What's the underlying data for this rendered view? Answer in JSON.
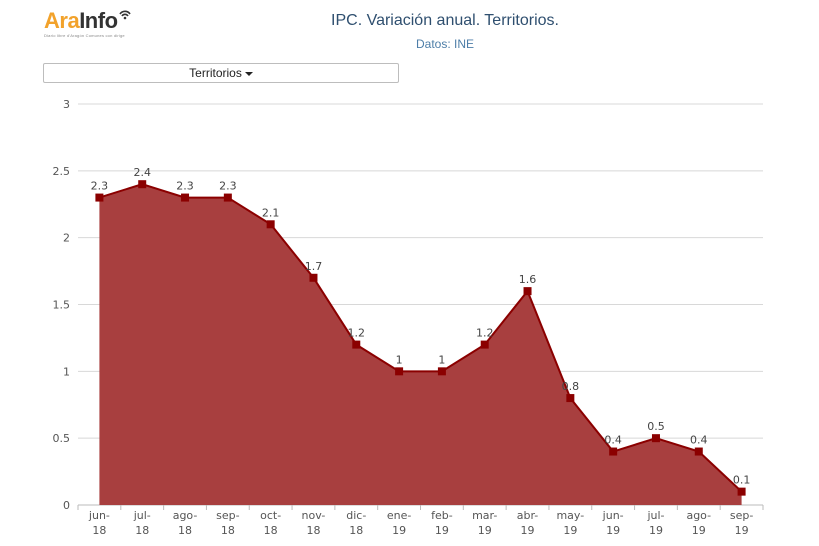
{
  "brand": {
    "name_a": "Ara",
    "name_b": "Info",
    "tagline": "Diario libre d'Aragón",
    "tagline2": "Comunes con dirige"
  },
  "header": {
    "title": "IPC. Variación anual. Territorios.",
    "subtitle": "Datos: INE"
  },
  "filter": {
    "label": "Territorios"
  },
  "colors": {
    "area": "#a83f3f",
    "line": "#8b0000",
    "marker": "#8b0000",
    "grid": "#d8d8d8"
  },
  "chart_data": {
    "type": "area",
    "categories": [
      [
        "jun-",
        "18"
      ],
      [
        "jul-",
        "18"
      ],
      [
        "ago-",
        "18"
      ],
      [
        "sep-",
        "18"
      ],
      [
        "oct-",
        "18"
      ],
      [
        "nov-",
        "18"
      ],
      [
        "dic-",
        "18"
      ],
      [
        "ene-",
        "19"
      ],
      [
        "feb-",
        "19"
      ],
      [
        "mar-",
        "19"
      ],
      [
        "abr-",
        "19"
      ],
      [
        "may-",
        "19"
      ],
      [
        "jun-",
        "19"
      ],
      [
        "jul-",
        "19"
      ],
      [
        "ago-",
        "19"
      ],
      [
        "sep-",
        "19"
      ]
    ],
    "values": [
      2.3,
      2.4,
      2.3,
      2.3,
      2.1,
      1.7,
      1.2,
      1,
      1,
      1.2,
      1.6,
      0.8,
      0.4,
      0.5,
      0.4,
      0.1
    ],
    "data_labels": [
      "2.3",
      "2.4",
      "2.3",
      "2.3",
      "2.1",
      "1.7",
      "1.2",
      "1",
      "1",
      "1.2",
      "1.6",
      "0.8",
      "0.4",
      "0.5",
      "0.4",
      "0.1"
    ],
    "yticks": [
      0,
      0.5,
      1,
      1.5,
      2,
      2.5,
      3
    ],
    "ytick_labels": [
      "0",
      "0.5",
      "1",
      "1.5",
      "2",
      "2.5",
      "3"
    ],
    "ylim": [
      0,
      3
    ],
    "grid": true,
    "legend": "none",
    "xlabel": "",
    "ylabel": ""
  }
}
